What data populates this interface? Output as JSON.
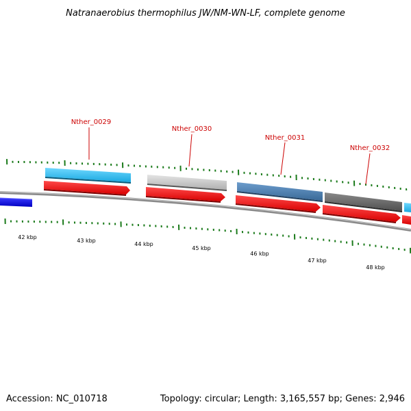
{
  "title": "Natranaerobius thermophilus JW/NM-WN-LF, complete genome",
  "accession": "Accession: NC_010718",
  "summary": "Topology: circular; Length: 3,165,557 bp; Genes: 2,946",
  "gene_labels": [
    "Nther_0029",
    "Nther_0030",
    "Nther_0031",
    "Nther_0032"
  ],
  "kbp_labels": [
    "42 kbp",
    "43 kbp",
    "44 kbp",
    "45 kbp",
    "46 kbp",
    "47 kbp",
    "48 kbp"
  ],
  "colors": {
    "backbone": "#8a8a8a",
    "cds": "#ff0000",
    "tick": "#1a7a1a",
    "label": "#cc0000",
    "features": [
      "#0000ee",
      "#22bbee",
      "#c8c8c8",
      "#4a7fb0",
      "#6a6a6a",
      "#22bbee"
    ]
  }
}
